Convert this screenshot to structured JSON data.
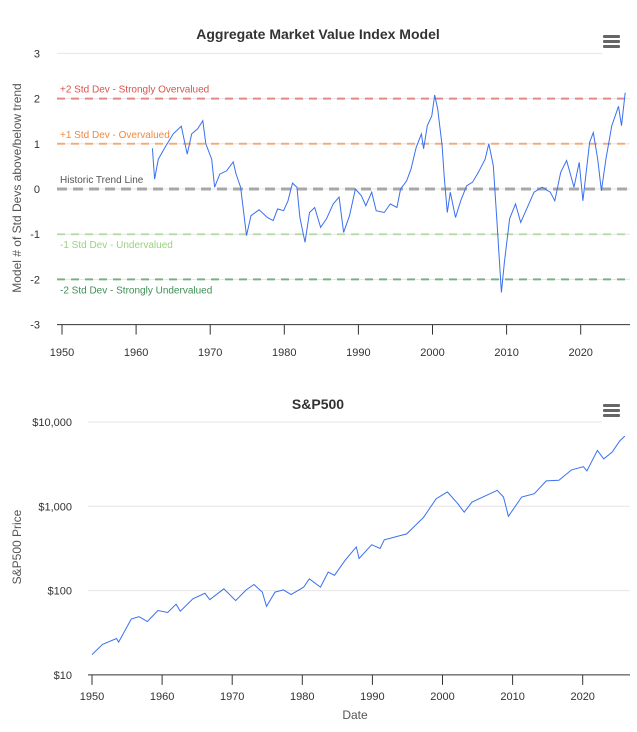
{
  "chart_data": [
    {
      "type": "line",
      "title": "Aggregate Market Value Index Model",
      "xlabel": "",
      "ylabel": "Model # of Std Devs above/below trend",
      "xlim": [
        1950,
        2026
      ],
      "ylim": [
        -3,
        3
      ],
      "x_ticks": [
        "1950",
        "1960",
        "1970",
        "1980",
        "1990",
        "2000",
        "2010",
        "2020"
      ],
      "y_ticks": [
        "3",
        "2",
        "1",
        "0",
        "-1",
        "-2",
        "-3"
      ],
      "grid": true,
      "bands": [
        {
          "value": 2,
          "label": "+2 Std Dev - Strongly Overvalued",
          "color": "#d9534f"
        },
        {
          "value": 1,
          "label": "+1 Std Dev - Overvalued",
          "color": "#f0883e"
        },
        {
          "value": 0,
          "label": "Historic Trend Line",
          "color": "#9a9a9a"
        },
        {
          "value": -1,
          "label": "-1 Std Dev - Undervalued",
          "color": "#9bd27f"
        },
        {
          "value": -2,
          "label": "-2 Std Dev - Strongly Undervalued",
          "color": "#3f8f55"
        }
      ],
      "series": [
        {
          "color": "#3a6ff0",
          "points": [
            [
              1962.2,
              0.9
            ],
            [
              1962.5,
              0.22
            ],
            [
              1963,
              0.66
            ],
            [
              1963.9,
              0.92
            ],
            [
              1965,
              1.22
            ],
            [
              1966.1,
              1.39
            ],
            [
              1966.9,
              0.77
            ],
            [
              1967.5,
              1.22
            ],
            [
              1968.3,
              1.33
            ],
            [
              1969,
              1.51
            ],
            [
              1969.4,
              1.0
            ],
            [
              1970.2,
              0.66
            ],
            [
              1970.6,
              0.04
            ],
            [
              1971.3,
              0.33
            ],
            [
              1972.2,
              0.4
            ],
            [
              1973.1,
              0.6
            ],
            [
              1973.5,
              0.33
            ],
            [
              1974.1,
              0.04
            ],
            [
              1974.9,
              -1.03
            ],
            [
              1975.5,
              -0.59
            ],
            [
              1976.6,
              -0.46
            ],
            [
              1977.7,
              -0.63
            ],
            [
              1978.5,
              -0.7
            ],
            [
              1979.1,
              -0.44
            ],
            [
              1979.9,
              -0.48
            ],
            [
              1980.5,
              -0.26
            ],
            [
              1981.1,
              0.13
            ],
            [
              1981.7,
              0.04
            ],
            [
              1982.1,
              -0.63
            ],
            [
              1982.8,
              -1.18
            ],
            [
              1983.4,
              -0.52
            ],
            [
              1984.1,
              -0.41
            ],
            [
              1984.9,
              -0.85
            ],
            [
              1985.7,
              -0.66
            ],
            [
              1986.6,
              -0.33
            ],
            [
              1987.4,
              -0.18
            ],
            [
              1988,
              -0.96
            ],
            [
              1988.8,
              -0.59
            ],
            [
              1989.6,
              0
            ],
            [
              1990.4,
              -0.15
            ],
            [
              1991,
              -0.37
            ],
            [
              1991.8,
              -0.07
            ],
            [
              1992.4,
              -0.48
            ],
            [
              1993.5,
              -0.52
            ],
            [
              1994.3,
              -0.33
            ],
            [
              1995.2,
              -0.41
            ],
            [
              1995.7,
              0
            ],
            [
              1996.5,
              0.18
            ],
            [
              1997.1,
              0.44
            ],
            [
              1997.8,
              0.92
            ],
            [
              1998.5,
              1.22
            ],
            [
              1998.8,
              0.89
            ],
            [
              1999.3,
              1.4
            ],
            [
              1999.9,
              1.62
            ],
            [
              2000.3,
              2.08
            ],
            [
              2000.7,
              1.77
            ],
            [
              2001.3,
              0.96
            ],
            [
              2001.6,
              0.22
            ],
            [
              2002,
              -0.52
            ],
            [
              2002.4,
              -0.07
            ],
            [
              2003.1,
              -0.63
            ],
            [
              2003.8,
              -0.26
            ],
            [
              2004.6,
              0.07
            ],
            [
              2005.4,
              0.15
            ],
            [
              2006.2,
              0.37
            ],
            [
              2007.1,
              0.66
            ],
            [
              2007.6,
              1.0
            ],
            [
              2008.2,
              0.52
            ],
            [
              2008.7,
              -0.74
            ],
            [
              2009.3,
              -2.29
            ],
            [
              2009.7,
              -1.62
            ],
            [
              2010.4,
              -0.66
            ],
            [
              2011.2,
              -0.33
            ],
            [
              2011.9,
              -0.74
            ],
            [
              2012.9,
              -0.37
            ],
            [
              2013.7,
              -0.07
            ],
            [
              2014.8,
              0.04
            ],
            [
              2015.9,
              -0.07
            ],
            [
              2016.5,
              -0.26
            ],
            [
              2017.3,
              0.37
            ],
            [
              2018.1,
              0.63
            ],
            [
              2019.1,
              0.04
            ],
            [
              2019.8,
              0.59
            ],
            [
              2020.3,
              -0.26
            ],
            [
              2021.2,
              1.03
            ],
            [
              2021.7,
              1.25
            ],
            [
              2022.3,
              0.66
            ],
            [
              2022.8,
              -0.04
            ],
            [
              2023.4,
              0.66
            ],
            [
              2024.2,
              1.4
            ],
            [
              2025.1,
              1.83
            ],
            [
              2025.5,
              1.4
            ],
            [
              2026,
              2.13
            ]
          ]
        }
      ]
    },
    {
      "type": "line",
      "title": "S&P500",
      "xlabel": "Date",
      "ylabel": "S&P500 Price",
      "xlim": [
        1950,
        2026
      ],
      "ylim": [
        10,
        10000
      ],
      "y_scale": "log",
      "x_ticks": [
        "1950",
        "1960",
        "1970",
        "1980",
        "1990",
        "2000",
        "2010",
        "2020"
      ],
      "y_ticks": [
        "$10,000",
        "$1,000",
        "$100",
        "$10"
      ],
      "grid": true,
      "series": [
        {
          "color": "#3a6ff0",
          "points": [
            [
              1950,
              17.4
            ],
            [
              1951.5,
              23
            ],
            [
              1953.5,
              27
            ],
            [
              1953.8,
              24.5
            ],
            [
              1955.6,
              46
            ],
            [
              1956.7,
              49
            ],
            [
              1957.9,
              43
            ],
            [
              1959.4,
              58
            ],
            [
              1960.8,
              55
            ],
            [
              1962,
              69
            ],
            [
              1962.6,
              57
            ],
            [
              1964.4,
              80
            ],
            [
              1966.1,
              93
            ],
            [
              1966.8,
              78
            ],
            [
              1968.8,
              105
            ],
            [
              1970.5,
              76
            ],
            [
              1972,
              102
            ],
            [
              1973.1,
              118
            ],
            [
              1974.3,
              96
            ],
            [
              1974.9,
              65
            ],
            [
              1976.1,
              96
            ],
            [
              1977.3,
              102
            ],
            [
              1978.4,
              90
            ],
            [
              1980.2,
              110
            ],
            [
              1981,
              138
            ],
            [
              1982.6,
              110
            ],
            [
              1983.7,
              166
            ],
            [
              1984.6,
              152
            ],
            [
              1986.1,
              229
            ],
            [
              1987.7,
              330
            ],
            [
              1988.1,
              240
            ],
            [
              1989.9,
              350
            ],
            [
              1991.1,
              316
            ],
            [
              1991.7,
              400
            ],
            [
              1994.9,
              470
            ],
            [
              1997.3,
              740
            ],
            [
              1999.1,
              1230
            ],
            [
              2000.7,
              1480
            ],
            [
              2002.2,
              1070
            ],
            [
              2003.1,
              850
            ],
            [
              2004.2,
              1120
            ],
            [
              2007.8,
              1550
            ],
            [
              2008.7,
              1290
            ],
            [
              2009.4,
              760
            ],
            [
              2011.3,
              1290
            ],
            [
              2013.1,
              1410
            ],
            [
              2014.8,
              2000
            ],
            [
              2016.6,
              2040
            ],
            [
              2018.4,
              2700
            ],
            [
              2020.1,
              2950
            ],
            [
              2020.6,
              2630
            ],
            [
              2022.1,
              4600
            ],
            [
              2023,
              3650
            ],
            [
              2024.2,
              4400
            ],
            [
              2025.3,
              6000
            ],
            [
              2026,
              6800
            ]
          ]
        }
      ]
    }
  ]
}
